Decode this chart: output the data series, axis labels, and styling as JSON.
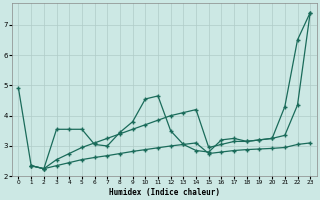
{
  "xlabel": "Humidex (Indice chaleur)",
  "bg_color": "#cce8e4",
  "grid_color": "#b0ccc8",
  "line_color": "#1a6b5a",
  "xlim": [
    -0.5,
    23.5
  ],
  "ylim": [
    2.0,
    7.7
  ],
  "yticks": [
    2,
    3,
    4,
    5,
    6,
    7
  ],
  "xticks": [
    0,
    1,
    2,
    3,
    4,
    5,
    6,
    7,
    8,
    9,
    10,
    11,
    12,
    13,
    14,
    15,
    16,
    17,
    18,
    19,
    20,
    21,
    22,
    23
  ],
  "line1_x": [
    0,
    1,
    2,
    3,
    4,
    5,
    6,
    7,
    8,
    9,
    10,
    11,
    12,
    13,
    14,
    15,
    16,
    17,
    18,
    19,
    20,
    21,
    22,
    23
  ],
  "line1_y": [
    4.9,
    2.35,
    2.25,
    3.55,
    3.55,
    3.55,
    3.05,
    3.0,
    3.45,
    3.8,
    4.55,
    4.65,
    3.5,
    3.05,
    2.85,
    2.8,
    3.2,
    3.25,
    3.15,
    3.2,
    3.25,
    4.3,
    6.5,
    7.4
  ],
  "line2_x": [
    1,
    2,
    3,
    4,
    5,
    6,
    7,
    8,
    9,
    10,
    11,
    12,
    13,
    14,
    15,
    16,
    17,
    18,
    19,
    20,
    21,
    22,
    23
  ],
  "line2_y": [
    2.35,
    2.25,
    2.55,
    2.75,
    2.95,
    3.1,
    3.25,
    3.4,
    3.55,
    3.7,
    3.85,
    4.0,
    4.1,
    4.2,
    2.95,
    3.05,
    3.15,
    3.15,
    3.2,
    3.25,
    3.35,
    4.35,
    7.4
  ],
  "line3_x": [
    1,
    2,
    3,
    4,
    5,
    6,
    7,
    8,
    9,
    10,
    11,
    12,
    13,
    14,
    15,
    16,
    17,
    18,
    19,
    20,
    21,
    22,
    23
  ],
  "line3_y": [
    2.35,
    2.25,
    2.35,
    2.45,
    2.55,
    2.62,
    2.68,
    2.75,
    2.82,
    2.88,
    2.94,
    3.0,
    3.05,
    3.1,
    2.75,
    2.8,
    2.85,
    2.88,
    2.9,
    2.92,
    2.95,
    3.05,
    3.1
  ]
}
